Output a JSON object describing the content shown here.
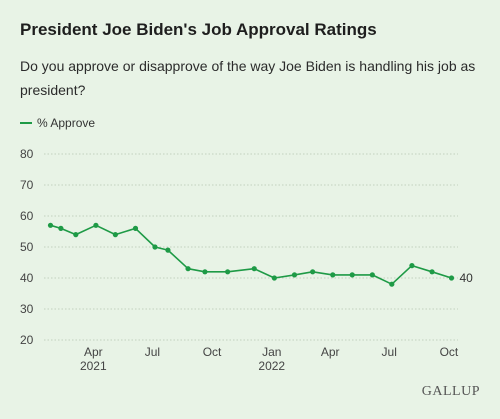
{
  "title": "President Joe Biden's Job Approval Ratings",
  "subtitle": "Do you approve or disapprove of the way Joe Biden is handling his job as president?",
  "brand": "GALLUP",
  "chart_data": {
    "type": "line",
    "x_unit": "month",
    "series": [
      {
        "name": "% Approve",
        "color": "#1e9a46",
        "points": [
          {
            "date": "2021-01-25",
            "value": 57
          },
          {
            "date": "2021-02-10",
            "value": 56
          },
          {
            "date": "2021-03-05",
            "value": 54
          },
          {
            "date": "2021-04-05",
            "value": 57
          },
          {
            "date": "2021-05-05",
            "value": 54
          },
          {
            "date": "2021-06-05",
            "value": 56
          },
          {
            "date": "2021-07-05",
            "value": 50
          },
          {
            "date": "2021-07-25",
            "value": 49
          },
          {
            "date": "2021-08-25",
            "value": 43
          },
          {
            "date": "2021-09-20",
            "value": 42
          },
          {
            "date": "2021-10-25",
            "value": 42
          },
          {
            "date": "2021-12-05",
            "value": 43
          },
          {
            "date": "2022-01-05",
            "value": 40
          },
          {
            "date": "2022-02-05",
            "value": 41
          },
          {
            "date": "2022-03-05",
            "value": 42
          },
          {
            "date": "2022-04-05",
            "value": 41
          },
          {
            "date": "2022-05-05",
            "value": 41
          },
          {
            "date": "2022-06-05",
            "value": 41
          },
          {
            "date": "2022-07-05",
            "value": 38
          },
          {
            "date": "2022-08-05",
            "value": 44
          },
          {
            "date": "2022-09-05",
            "value": 42
          },
          {
            "date": "2022-10-05",
            "value": 40
          }
        ]
      }
    ],
    "end_label": "40",
    "y_ticks": [
      20,
      30,
      40,
      50,
      60,
      70,
      80
    ],
    "ylim": [
      20,
      80
    ],
    "x_ticks": [
      {
        "date": "2021-04-01",
        "label": "Apr"
      },
      {
        "date": "2021-07-01",
        "label": "Jul"
      },
      {
        "date": "2021-10-01",
        "label": "Oct"
      },
      {
        "date": "2022-01-01",
        "label": "Jan"
      },
      {
        "date": "2022-04-01",
        "label": "Apr"
      },
      {
        "date": "2022-07-01",
        "label": "Jul"
      },
      {
        "date": "2022-10-01",
        "label": "Oct"
      }
    ],
    "year_labels": [
      {
        "date": "2021-04-01",
        "label": "2021"
      },
      {
        "date": "2022-01-01",
        "label": "2022"
      }
    ],
    "xlim": [
      "2021-01-15",
      "2022-10-15"
    ],
    "grid": true,
    "legend_position": "top-left"
  }
}
